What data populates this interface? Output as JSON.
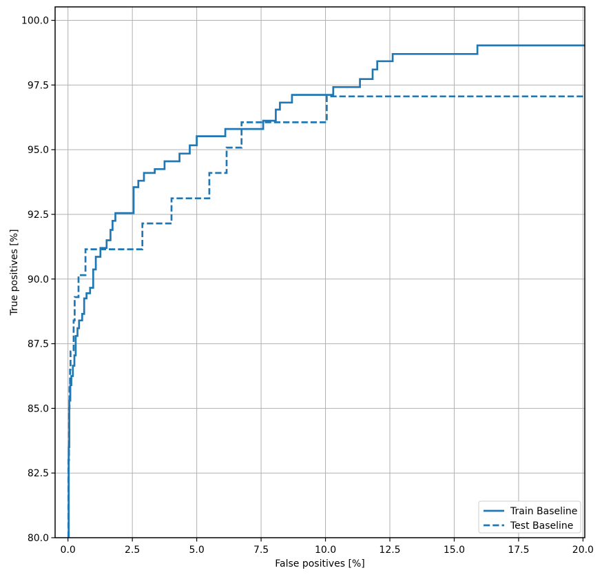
{
  "chart_data": {
    "type": "line",
    "title": "",
    "xlabel": "False positives [%]",
    "ylabel": "True positives [%]",
    "xlim": [
      -0.5,
      20.07
    ],
    "ylim": [
      80.0,
      100.52
    ],
    "xticks": [
      0.0,
      2.5,
      5.0,
      7.5,
      10.0,
      12.5,
      15.0,
      17.5,
      20.0
    ],
    "xtick_labels": [
      "0.0",
      "2.5",
      "5.0",
      "7.5",
      "10.0",
      "12.5",
      "15.0",
      "17.5",
      "20.0"
    ],
    "yticks": [
      80.0,
      82.5,
      85.0,
      87.5,
      90.0,
      92.5,
      95.0,
      97.5,
      100.0
    ],
    "ytick_labels": [
      "80.0",
      "82.5",
      "85.0",
      "87.5",
      "90.0",
      "92.5",
      "95.0",
      "97.5",
      "100.0"
    ],
    "grid": true,
    "colors": {
      "line": "#1f77b4",
      "grid": "#b0b0b0",
      "spine": "#000000",
      "legend_border": "#cccccc",
      "legend_bg": "#ffffff"
    },
    "legend": {
      "position": "lower right",
      "entries": [
        {
          "label": "Train Baseline",
          "style": "solid"
        },
        {
          "label": "Test Baseline",
          "style": "dashed"
        }
      ]
    },
    "series": [
      {
        "name": "Train Baseline",
        "style": "solid",
        "points_are": "polyline-vertices",
        "points": [
          [
            0.03,
            80.0
          ],
          [
            0.03,
            83.5
          ],
          [
            0.05,
            83.5
          ],
          [
            0.05,
            85.3
          ],
          [
            0.09,
            85.3
          ],
          [
            0.09,
            85.9
          ],
          [
            0.13,
            85.9
          ],
          [
            0.13,
            86.25
          ],
          [
            0.19,
            86.25
          ],
          [
            0.19,
            86.65
          ],
          [
            0.25,
            86.65
          ],
          [
            0.25,
            87.05
          ],
          [
            0.3,
            87.05
          ],
          [
            0.3,
            87.8
          ],
          [
            0.37,
            87.8
          ],
          [
            0.37,
            88.1
          ],
          [
            0.43,
            88.1
          ],
          [
            0.43,
            88.4
          ],
          [
            0.55,
            88.4
          ],
          [
            0.55,
            88.65
          ],
          [
            0.63,
            88.65
          ],
          [
            0.63,
            89.25
          ],
          [
            0.72,
            89.25
          ],
          [
            0.72,
            89.45
          ],
          [
            0.86,
            89.45
          ],
          [
            0.86,
            89.66
          ],
          [
            0.98,
            89.66
          ],
          [
            0.98,
            90.37
          ],
          [
            1.08,
            90.37
          ],
          [
            1.08,
            90.86
          ],
          [
            1.26,
            90.86
          ],
          [
            1.26,
            91.2
          ],
          [
            1.5,
            91.2
          ],
          [
            1.5,
            91.5
          ],
          [
            1.65,
            91.5
          ],
          [
            1.65,
            91.9
          ],
          [
            1.73,
            91.9
          ],
          [
            1.73,
            92.25
          ],
          [
            1.84,
            92.25
          ],
          [
            1.84,
            92.55
          ],
          [
            2.55,
            92.55
          ],
          [
            2.55,
            93.55
          ],
          [
            2.73,
            93.55
          ],
          [
            2.73,
            93.8
          ],
          [
            2.95,
            93.8
          ],
          [
            2.95,
            94.1
          ],
          [
            3.37,
            94.1
          ],
          [
            3.37,
            94.25
          ],
          [
            3.75,
            94.25
          ],
          [
            3.75,
            94.55
          ],
          [
            4.33,
            94.55
          ],
          [
            4.33,
            94.85
          ],
          [
            4.73,
            94.85
          ],
          [
            4.73,
            95.17
          ],
          [
            5.0,
            95.17
          ],
          [
            5.0,
            95.52
          ],
          [
            6.11,
            95.52
          ],
          [
            6.11,
            95.8
          ],
          [
            7.58,
            95.8
          ],
          [
            7.58,
            96.12
          ],
          [
            8.07,
            96.12
          ],
          [
            8.07,
            96.55
          ],
          [
            8.23,
            96.55
          ],
          [
            8.23,
            96.82
          ],
          [
            8.7,
            96.82
          ],
          [
            8.7,
            97.12
          ],
          [
            10.3,
            97.12
          ],
          [
            10.3,
            97.42
          ],
          [
            11.34,
            97.42
          ],
          [
            11.34,
            97.73
          ],
          [
            11.83,
            97.73
          ],
          [
            11.83,
            98.1
          ],
          [
            12.01,
            98.1
          ],
          [
            12.01,
            98.42
          ],
          [
            12.61,
            98.42
          ],
          [
            12.61,
            98.7
          ],
          [
            15.9,
            98.7
          ],
          [
            15.9,
            99.03
          ],
          [
            20.07,
            99.03
          ]
        ]
      },
      {
        "name": "Test Baseline",
        "style": "dashed",
        "points_are": "polyline-vertices",
        "points": [
          [
            0.02,
            80.0
          ],
          [
            0.02,
            83.0
          ],
          [
            0.04,
            83.0
          ],
          [
            0.04,
            85.0
          ],
          [
            0.06,
            85.0
          ],
          [
            0.06,
            85.9
          ],
          [
            0.08,
            85.9
          ],
          [
            0.08,
            86.5
          ],
          [
            0.1,
            86.5
          ],
          [
            0.1,
            87.2
          ],
          [
            0.22,
            87.2
          ],
          [
            0.22,
            88.4
          ],
          [
            0.26,
            88.4
          ],
          [
            0.26,
            89.3
          ],
          [
            0.41,
            89.3
          ],
          [
            0.41,
            90.15
          ],
          [
            0.68,
            90.15
          ],
          [
            0.68,
            91.15
          ],
          [
            2.89,
            91.15
          ],
          [
            2.89,
            92.15
          ],
          [
            4.02,
            92.15
          ],
          [
            4.02,
            93.12
          ],
          [
            5.49,
            93.12
          ],
          [
            5.49,
            94.1
          ],
          [
            6.16,
            94.1
          ],
          [
            6.16,
            95.08
          ],
          [
            6.74,
            95.08
          ],
          [
            6.74,
            96.06
          ],
          [
            10.05,
            96.06
          ],
          [
            10.05,
            97.06
          ],
          [
            20.07,
            97.06
          ]
        ]
      }
    ]
  }
}
